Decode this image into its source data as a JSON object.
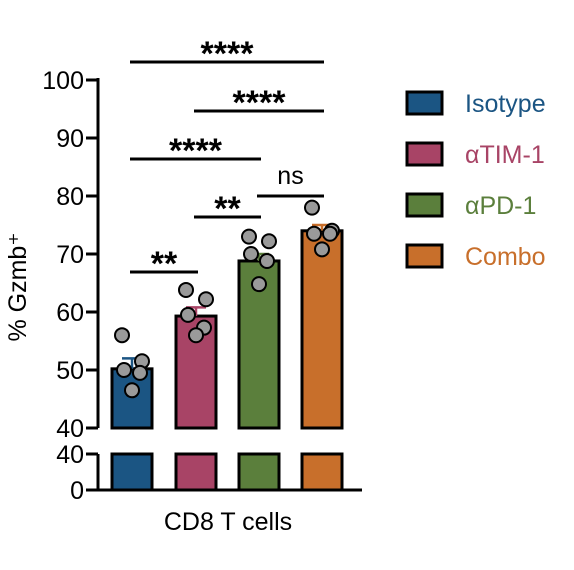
{
  "chart_data": {
    "type": "bar",
    "ylabel": "% Gzmb⁺",
    "xlabel": "CD8 T cells",
    "ylim_upper": [
      40,
      100
    ],
    "ylim_lower": [
      0,
      40
    ],
    "upper_ticks": [
      "100",
      "90",
      "80",
      "70",
      "60",
      "50",
      "40"
    ],
    "upper_tick_values": [
      100,
      90,
      80,
      70,
      60,
      50,
      40
    ],
    "lower_ticks": [
      "40",
      "0"
    ],
    "lower_tick_values": [
      40,
      0
    ],
    "series": [
      {
        "name": "Isotype",
        "color": "#1b5583",
        "mean": 50.2,
        "sem": 1.8,
        "points": [
          56,
          51.5,
          50,
          49.5,
          46.5
        ]
      },
      {
        "name": "αTIM-1",
        "color": "#a84466",
        "mean": 59.3,
        "sem": 1.5,
        "points": [
          63.8,
          62.2,
          59.5,
          57.3,
          56
        ]
      },
      {
        "name": "αPD-1",
        "color": "#5b7f3c",
        "mean": 68.8,
        "sem": 1.2,
        "points": [
          73,
          72.2,
          70,
          68.8,
          64.8
        ]
      },
      {
        "name": "Combo",
        "color": "#c86f2b",
        "mean": 74,
        "sem": 1.0,
        "points": [
          78,
          74,
          73.5,
          73.5,
          70.8
        ]
      }
    ],
    "comparisons": [
      {
        "from": 0,
        "to": 3,
        "label": "****"
      },
      {
        "from": 1,
        "to": 3,
        "label": "****"
      },
      {
        "from": 0,
        "to": 2,
        "label": "****"
      },
      {
        "from": 1,
        "to": 2,
        "label": "**"
      },
      {
        "from": 2,
        "to": 3,
        "label": "ns"
      },
      {
        "from": 0,
        "to": 1,
        "label": "**"
      }
    ],
    "legend_position": "right"
  }
}
